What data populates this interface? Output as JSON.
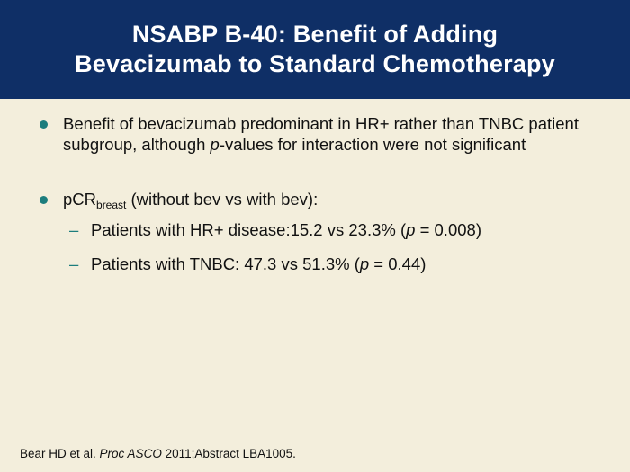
{
  "header": {
    "title_line1": "NSABP B-40: Benefit of Adding",
    "title_line2": "Bevacizumab to Standard Chemotherapy"
  },
  "bullets": [
    {
      "pre": "Benefit of bevacizumab predominant in HR+ rather than TNBC patient subgroup, although ",
      "italic": "p",
      "post": "-values for interaction were not significant"
    },
    {
      "main": "pCR",
      "subscript": "breast",
      "rest": " (without bev vs with bev):"
    }
  ],
  "subitems": [
    {
      "dash": "–",
      "pre": "Patients with HR+ disease:15.2 vs 23.3% (",
      "italic": "p",
      "post": " = 0.008)"
    },
    {
      "dash": "–",
      "pre": "Patients with TNBC: 47.3 vs 51.3% (",
      "italic": "p",
      "post": " = 0.44)"
    }
  ],
  "footer": {
    "pre": "Bear HD et al. ",
    "italic": "Proc ASCO",
    "post": " 2011;Abstract LBA1005."
  },
  "colors": {
    "header_bg": "#0f2f66",
    "body_bg": "#f3eedc",
    "bullet": "#1c7d7d"
  }
}
